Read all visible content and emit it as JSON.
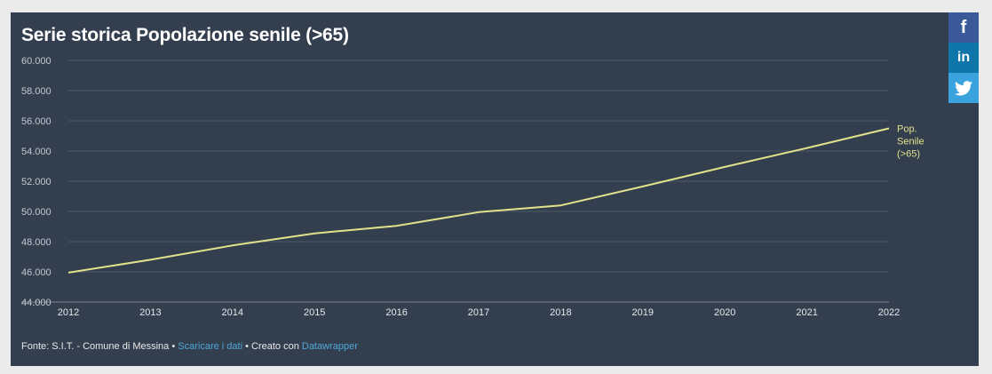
{
  "header": {
    "title": "Serie storica Popolazione senile (>65)"
  },
  "footer": {
    "source": "Fonte: S.I.T. - Comune di Messina",
    "sep": " • ",
    "download_label": "Scaricare i dati",
    "credit_prefix": "Creato con",
    "credit_link": "Datawrapper"
  },
  "share": [
    {
      "name": "facebook",
      "glyph": "f",
      "color": "#3b5998"
    },
    {
      "name": "linkedin",
      "glyph": "in",
      "color": "#0e76a8"
    },
    {
      "name": "twitter",
      "glyph": "",
      "color": "#3aa3de"
    }
  ],
  "colors": {
    "background": "#333f4f",
    "line": "#e2e28a",
    "grid": "#4e5a6a",
    "tick_text": "#c3c8cf"
  },
  "chart_data": {
    "type": "line",
    "title": "Serie storica Popolazione senile (>65)",
    "xlabel": "",
    "ylabel": "",
    "x_ticks": [
      "2012",
      "2013",
      "2014",
      "2015",
      "2016",
      "2017",
      "2018",
      "2019",
      "2020",
      "2021",
      "2022"
    ],
    "y_ticks": [
      "44.000",
      "46.000",
      "48.000",
      "50.000",
      "52.000",
      "54.000",
      "56.000",
      "58.000",
      "60.000"
    ],
    "xlim": [
      2012,
      2022
    ],
    "ylim": [
      44000,
      60000
    ],
    "grid": true,
    "series": [
      {
        "name": "Pop. Senile (>65)",
        "label_lines": [
          "Pop.",
          "Senile",
          "(>65)"
        ],
        "x": [
          2012,
          2013,
          2014,
          2015,
          2016,
          2017,
          2018,
          2019,
          2020,
          2021,
          2022
        ],
        "values": [
          45950,
          46800,
          47750,
          48550,
          49050,
          49950,
          50400,
          51650,
          52950,
          54200,
          55500
        ]
      }
    ]
  }
}
